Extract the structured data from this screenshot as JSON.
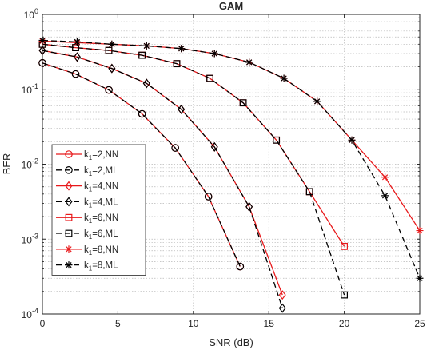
{
  "chart_data": {
    "type": "line",
    "title": "GAM",
    "xlabel": "SNR (dB)",
    "ylabel": "BER",
    "xlim": [
      0,
      25
    ],
    "ylim": [
      0.0001,
      1
    ],
    "yscale": "log",
    "grid": true,
    "legend_position": "bottom-left",
    "x_ticks": [
      "0",
      "5",
      "10",
      "15",
      "20",
      "25"
    ],
    "y_ticks": [
      {
        "base": "10",
        "exp": "0"
      },
      {
        "base": "10",
        "exp": "-1"
      },
      {
        "base": "10",
        "exp": "-2"
      },
      {
        "base": "10",
        "exp": "-3"
      },
      {
        "base": "10",
        "exp": "-4"
      }
    ],
    "series": [
      {
        "name": "k1=2,NN",
        "label": {
          "pre": "k",
          "sub": "1",
          "post": "=2,NN"
        },
        "color": "#e8191b",
        "dash": "solid",
        "marker": "circle",
        "x": [
          0,
          2.2,
          4.4,
          6.6,
          8.8,
          11,
          13.1
        ],
        "y": [
          0.225,
          0.16,
          0.098,
          0.047,
          0.0165,
          0.0037,
          0.00043
        ]
      },
      {
        "name": "k1=2,ML",
        "label": {
          "pre": "k",
          "sub": "1",
          "post": "=2,ML"
        },
        "color": "#000000",
        "dash": "dash",
        "marker": "circle",
        "x": [
          0,
          2.2,
          4.4,
          6.6,
          8.8,
          11,
          13.1
        ],
        "y": [
          0.225,
          0.16,
          0.098,
          0.047,
          0.0165,
          0.0037,
          0.00043
        ]
      },
      {
        "name": "k1=4,NN",
        "label": {
          "pre": "k",
          "sub": "1",
          "post": "=4,NN"
        },
        "color": "#e8191b",
        "dash": "solid",
        "marker": "diamond",
        "x": [
          0,
          2.3,
          4.6,
          6.9,
          9.2,
          11.4,
          13.7,
          15.9
        ],
        "y": [
          0.33,
          0.27,
          0.19,
          0.12,
          0.054,
          0.017,
          0.0027,
          0.00018
        ]
      },
      {
        "name": "k1=4,ML",
        "label": {
          "pre": "k",
          "sub": "1",
          "post": "=4,ML"
        },
        "color": "#000000",
        "dash": "dash",
        "marker": "diamond",
        "x": [
          0,
          2.3,
          4.6,
          6.9,
          9.2,
          11.4,
          13.7,
          15.9
        ],
        "y": [
          0.33,
          0.27,
          0.19,
          0.12,
          0.054,
          0.017,
          0.0027,
          0.00012
        ]
      },
      {
        "name": "k1=6,NN",
        "label": {
          "pre": "k",
          "sub": "1",
          "post": "=6,NN"
        },
        "color": "#e8191b",
        "dash": "solid",
        "marker": "square",
        "x": [
          0,
          2.2,
          4.4,
          6.6,
          8.9,
          11.1,
          13.3,
          15.5,
          17.7,
          20
        ],
        "y": [
          0.4,
          0.36,
          0.33,
          0.285,
          0.22,
          0.14,
          0.066,
          0.021,
          0.0043,
          0.0008
        ]
      },
      {
        "name": "k1=6,ML",
        "label": {
          "pre": "k",
          "sub": "1",
          "post": "=6,ML"
        },
        "color": "#000000",
        "dash": "dash",
        "marker": "square",
        "x": [
          0,
          2.2,
          4.4,
          6.6,
          8.9,
          11.1,
          13.3,
          15.5,
          17.7,
          20
        ],
        "y": [
          0.4,
          0.36,
          0.33,
          0.285,
          0.22,
          0.14,
          0.066,
          0.021,
          0.0043,
          0.00018
        ]
      },
      {
        "name": "k1=8,NN",
        "label": {
          "pre": "k",
          "sub": "1",
          "post": "=8,NN"
        },
        "color": "#e8191b",
        "dash": "solid",
        "marker": "star",
        "x": [
          0,
          2.3,
          4.6,
          6.9,
          9.2,
          11.4,
          13.7,
          16,
          18.2,
          20.5,
          22.7,
          25
        ],
        "y": [
          0.44,
          0.42,
          0.4,
          0.38,
          0.35,
          0.3,
          0.23,
          0.14,
          0.069,
          0.021,
          0.0067,
          0.0013
        ]
      },
      {
        "name": "k1=8,ML",
        "label": {
          "pre": "k",
          "sub": "1",
          "post": "=8,ML"
        },
        "color": "#000000",
        "dash": "dash",
        "marker": "asterisk",
        "x": [
          0,
          2.3,
          4.6,
          6.9,
          9.2,
          11.4,
          13.7,
          16,
          18.2,
          20.5,
          22.7,
          25
        ],
        "y": [
          0.45,
          0.43,
          0.4,
          0.38,
          0.35,
          0.3,
          0.23,
          0.14,
          0.069,
          0.021,
          0.0038,
          0.0003
        ]
      }
    ]
  }
}
